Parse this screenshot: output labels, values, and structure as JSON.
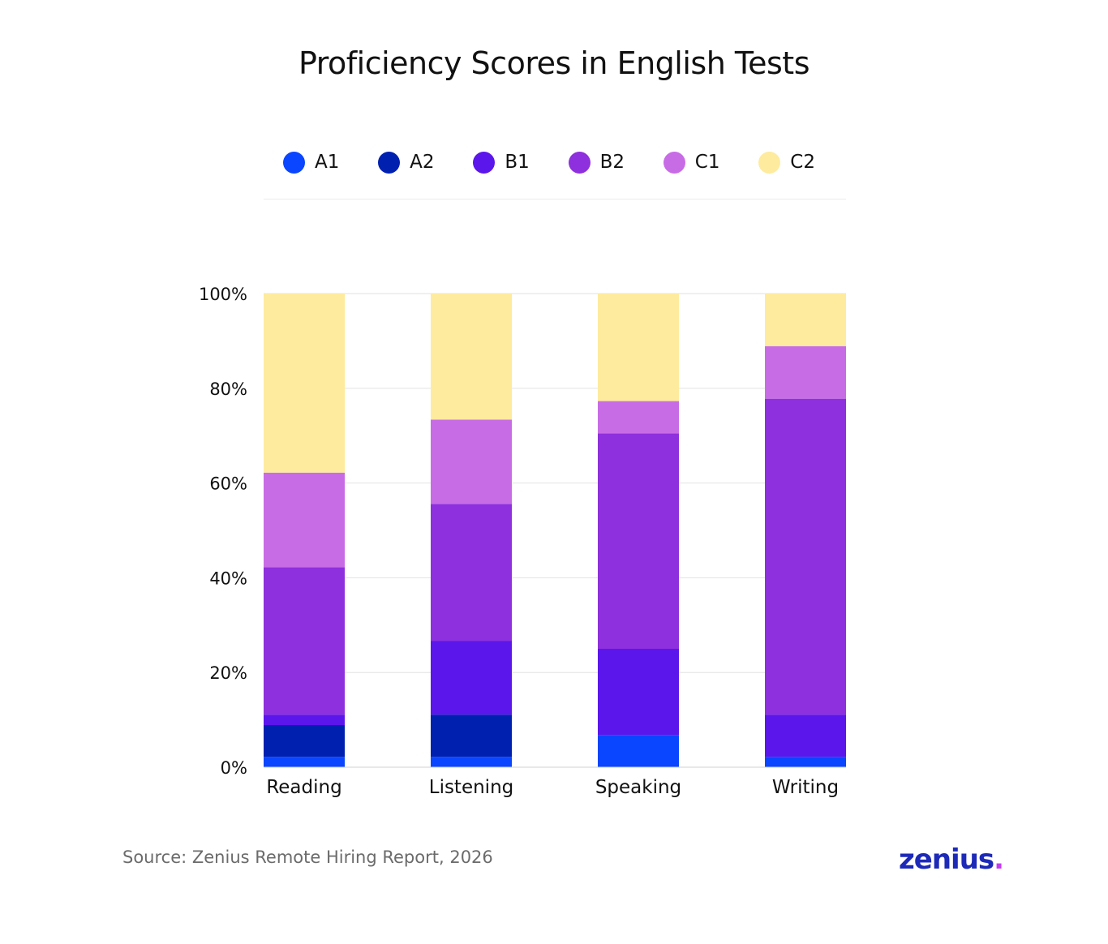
{
  "title": "Proficiency Scores in English Tests",
  "source": "Source: Zenius Remote Hiring Report, 2026",
  "logo": {
    "text": "zenius",
    "dot": "."
  },
  "chart_data": {
    "type": "bar",
    "stacked": true,
    "title": "Proficiency Scores in English Tests",
    "xlabel": "",
    "ylabel": "",
    "ylim": [
      0,
      100
    ],
    "yticks": [
      "0%",
      "20%",
      "40%",
      "60%",
      "80%",
      "100%"
    ],
    "ytick_values": [
      0,
      20,
      40,
      60,
      80,
      100
    ],
    "grid": true,
    "legend_position": "top",
    "categories": [
      "Reading",
      "Listening",
      "Speaking",
      "Writing"
    ],
    "series": [
      {
        "name": "A1",
        "color": "#0a45ff",
        "values": [
          2.2,
          2.2,
          6.8,
          2.2
        ]
      },
      {
        "name": "A2",
        "color": "#0020b0",
        "values": [
          6.7,
          8.9,
          0,
          0
        ]
      },
      {
        "name": "B1",
        "color": "#5b16ec",
        "values": [
          2.2,
          15.6,
          18.2,
          8.9
        ]
      },
      {
        "name": "B2",
        "color": "#8e30dd",
        "values": [
          31.1,
          28.9,
          45.5,
          66.7
        ]
      },
      {
        "name": "C1",
        "color": "#c86ce6",
        "values": [
          20.0,
          17.8,
          6.8,
          11.1
        ]
      },
      {
        "name": "C2",
        "color": "#feeb9d",
        "values": [
          37.8,
          26.6,
          22.7,
          11.1
        ]
      }
    ]
  }
}
